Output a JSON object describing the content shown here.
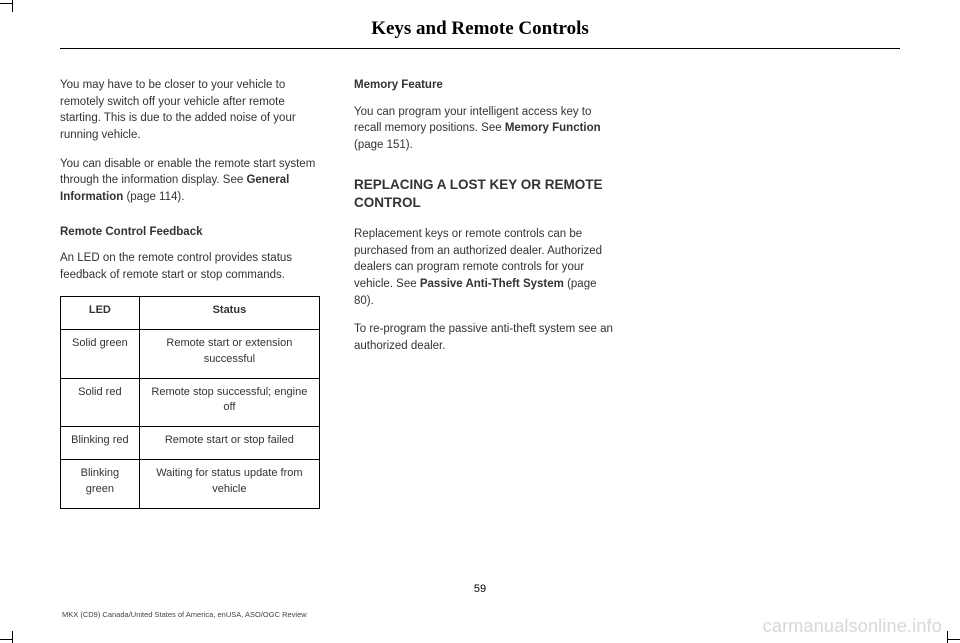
{
  "header": {
    "title": "Keys and Remote Controls"
  },
  "col1": {
    "p1": "You may have to be closer to your vehicle to remotely switch off your vehicle after remote starting. This is due to the added noise of your running vehicle.",
    "p2a": "You can disable or enable the remote start system through the information display.  See ",
    "p2b": "General Information",
    "p2c": " (page 114).",
    "sub1": "Remote Control Feedback",
    "p3": "An LED on the remote control provides status feedback of remote start or stop commands.",
    "table": {
      "h1": "LED",
      "h2": "Status",
      "rows": [
        {
          "led": "Solid green",
          "status": "Remote start or extension successful"
        },
        {
          "led": "Solid red",
          "status": "Remote stop successful; engine off"
        },
        {
          "led": "Blinking red",
          "status": "Remote start or stop failed"
        },
        {
          "led": "Blinking green",
          "status": "Waiting for status update from vehicle"
        }
      ]
    }
  },
  "col2": {
    "sub1": "Memory Feature",
    "p1a": "You can program your intelligent access key to recall memory positions.  See ",
    "p1b": "Memory Function",
    "p1c": " (page 151).",
    "sec1": "REPLACING A LOST KEY OR REMOTE CONTROL",
    "p2a": "Replacement keys or remote controls can be purchased from an authorized dealer. Authorized dealers can program remote controls for your vehicle.  See ",
    "p2b": "Passive Anti-Theft System",
    "p2c": " (page 80).",
    "p3": "To re-program the passive anti-theft system see an authorized dealer."
  },
  "page_number": "59",
  "footer": "MKX (CD9) Canada/United States of America, enUSA, ASO/OGC Review",
  "watermark": "carmanualsonline.info"
}
